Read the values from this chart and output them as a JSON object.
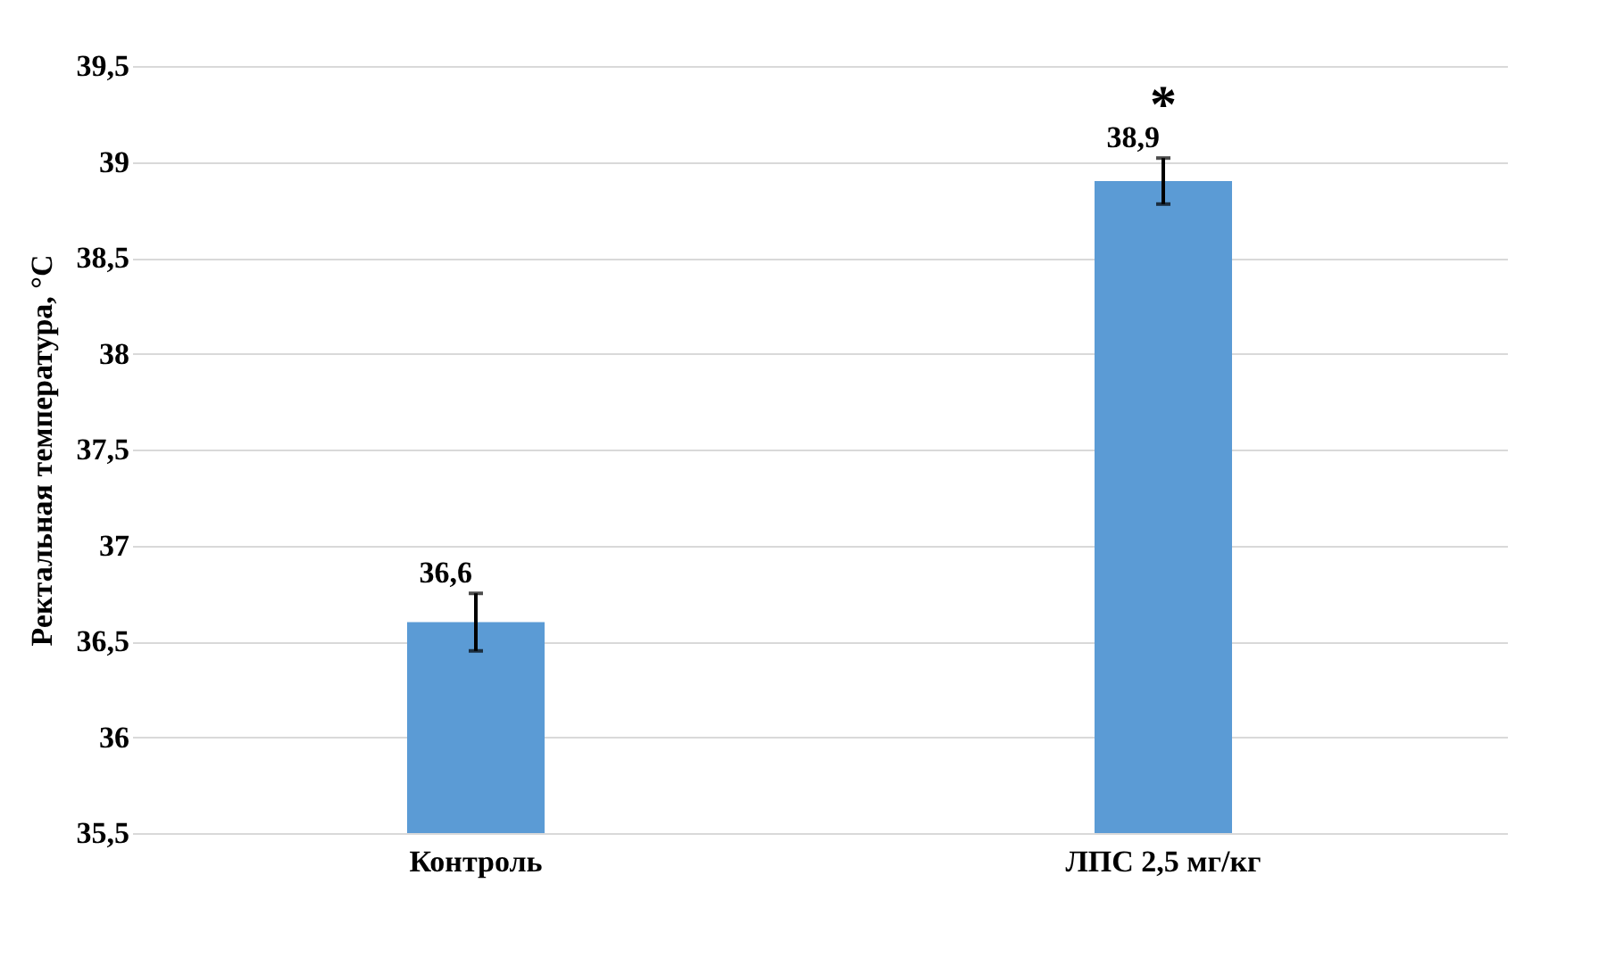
{
  "chart_data": {
    "type": "bar",
    "ylabel": "Ректальная температура, °С",
    "categories": [
      "Контроль",
      "ЛПС 2,5 мг/кг"
    ],
    "values": [
      36.6,
      38.9
    ],
    "color": "#5b9bd5",
    "errors": [
      0.15,
      0.12
    ],
    "value_labels": [
      "36,6",
      "38,9"
    ],
    "ylim": [
      35.5,
      39.5
    ],
    "yticks": [
      {
        "value": 35.5,
        "label": "35,5"
      },
      {
        "value": 36,
        "label": "36"
      },
      {
        "value": 36.5,
        "label": "36,5"
      },
      {
        "value": 37,
        "label": "37"
      },
      {
        "value": 37.5,
        "label": "37,5"
      },
      {
        "value": 38,
        "label": "38"
      },
      {
        "value": 38.5,
        "label": "38,5"
      },
      {
        "value": 39,
        "label": "39"
      },
      {
        "value": 39.5,
        "label": "39,5"
      }
    ],
    "grid": "y",
    "annotations": [
      "*"
    ]
  }
}
